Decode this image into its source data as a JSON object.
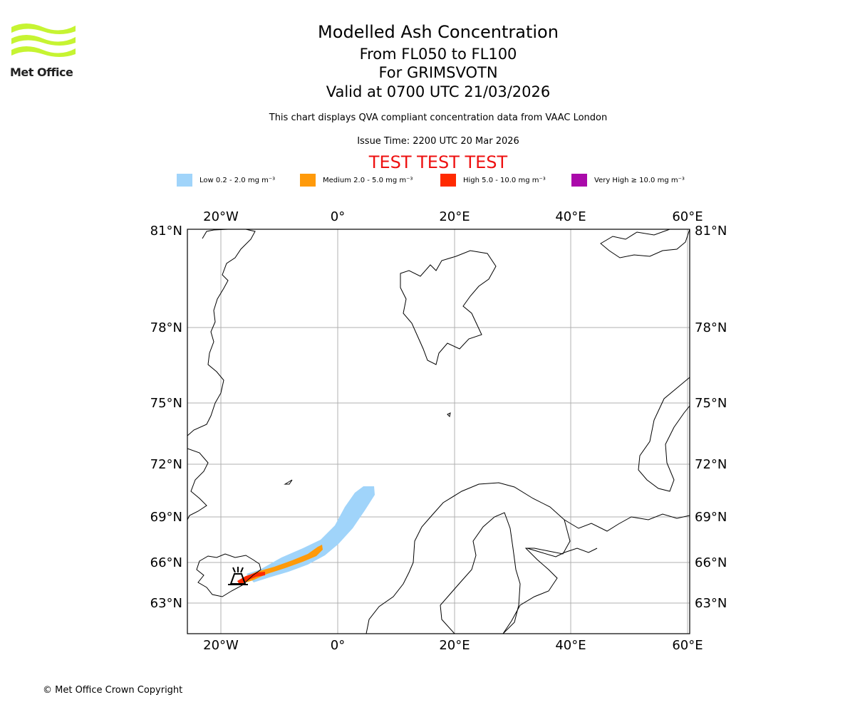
{
  "logo": {
    "text": "Met Office",
    "color": "#c6f432"
  },
  "title": {
    "line1": "Modelled Ash Concentration",
    "line2": "From FL050 to FL100",
    "line3": "For GRIMSVOTN",
    "line4": "Valid at 0700 UTC 21/03/2026"
  },
  "description": "This chart displays QVA compliant concentration data from VAAC London",
  "issue_time": "Issue Time: 2200 UTC 20 Mar 2026",
  "test_banner": "TEST TEST TEST",
  "legend": [
    {
      "label": "Low 0.2 - 2.0 mg m⁻³",
      "color": "#a0d4fa"
    },
    {
      "label": "Medium 2.0 - 5.0 mg m⁻³",
      "color": "#ff9a0a"
    },
    {
      "label": "High 5.0 - 10.0 mg m⁻³",
      "color": "#ff2a00"
    },
    {
      "label": "Very High ≥ 10.0 mg m⁻³",
      "color": "#aa0aaa"
    }
  ],
  "map": {
    "lon_ticks": [
      "20°W",
      "0°",
      "20°E",
      "40°E",
      "60°E"
    ],
    "lat_ticks": [
      "81°N",
      "78°N",
      "75°N",
      "72°N",
      "69°N",
      "66°N",
      "63°N"
    ],
    "volcano_icon": "volcano-icon",
    "gridline_color": "#b0b0b0"
  },
  "copyright": "© Met Office Crown Copyright"
}
